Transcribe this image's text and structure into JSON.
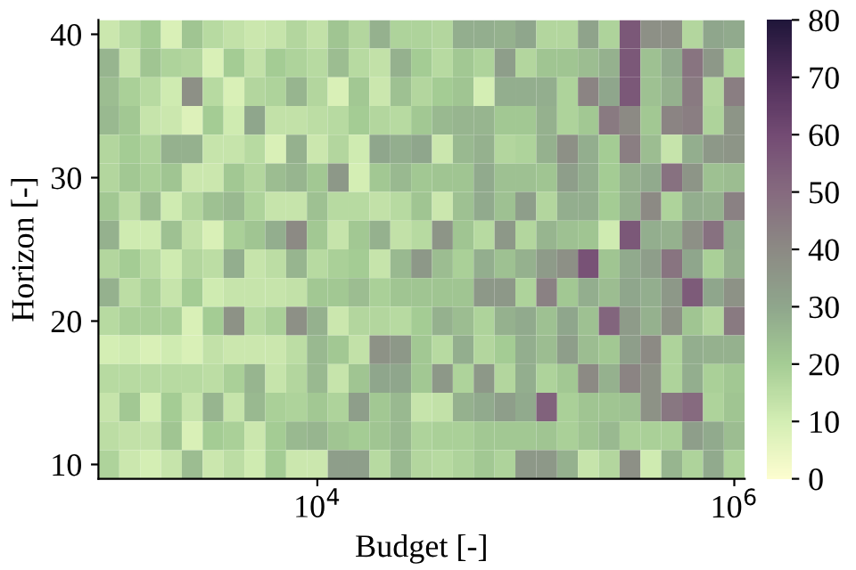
{
  "chart_data": {
    "type": "heatmap",
    "xlabel": "Budget [-]",
    "ylabel": "Horizon [-]",
    "clabel": null,
    "x": [
      1000,
      1259,
      1585,
      1995,
      2512,
      3162,
      3981,
      5012,
      6310,
      7943,
      10000,
      12589,
      15849,
      19953,
      25119,
      31623,
      39811,
      50119,
      63096,
      79433,
      100000,
      125893,
      158489,
      199526,
      251189,
      316228,
      398107,
      501187,
      630957,
      794328,
      1000000
    ],
    "y": [
      40,
      38,
      36,
      34,
      32,
      30,
      28,
      26,
      24,
      22,
      20,
      18,
      16,
      14,
      12,
      10
    ],
    "cells": [
      [
        12,
        16,
        20,
        9,
        22,
        16,
        14,
        12,
        13,
        17,
        14,
        22,
        17,
        27,
        18,
        18,
        17,
        28,
        28,
        27,
        30,
        17,
        17,
        31,
        18,
        56,
        38,
        38,
        17,
        30,
        29
      ],
      [
        26,
        13,
        22,
        18,
        17,
        9,
        20,
        14,
        20,
        18,
        16,
        24,
        16,
        14,
        27,
        20,
        16,
        21,
        18,
        33,
        17,
        22,
        22,
        24,
        27,
        56,
        23,
        29,
        47,
        35,
        18
      ],
      [
        24,
        19,
        16,
        11,
        38,
        16,
        9,
        17,
        18,
        26,
        17,
        9,
        21,
        12,
        23,
        17,
        20,
        22,
        10,
        28,
        28,
        28,
        18,
        42,
        30,
        56,
        23,
        27,
        45,
        17,
        44
      ],
      [
        25,
        21,
        13,
        12,
        8,
        20,
        11,
        30,
        14,
        14,
        15,
        16,
        20,
        17,
        16,
        21,
        25,
        26,
        26,
        21,
        21,
        27,
        18,
        21,
        45,
        40,
        21,
        42,
        44,
        18,
        36
      ],
      [
        17,
        20,
        18,
        27,
        27,
        13,
        13,
        16,
        9,
        27,
        12,
        17,
        11,
        30,
        28,
        30,
        12,
        25,
        27,
        17,
        18,
        27,
        38,
        28,
        20,
        44,
        24,
        13,
        28,
        35,
        36
      ],
      [
        17,
        21,
        19,
        22,
        12,
        12,
        21,
        17,
        24,
        26,
        21,
        35,
        10,
        21,
        25,
        21,
        22,
        22,
        29,
        23,
        23,
        22,
        33,
        28,
        20,
        27,
        29,
        48,
        36,
        23,
        24
      ],
      [
        21,
        15,
        24,
        11,
        17,
        23,
        25,
        18,
        13,
        13,
        23,
        16,
        16,
        14,
        16,
        22,
        12,
        23,
        29,
        23,
        33,
        17,
        28,
        28,
        20,
        27,
        40,
        18,
        28,
        27,
        43
      ],
      [
        27,
        11,
        11,
        23,
        14,
        9,
        19,
        22,
        28,
        40,
        21,
        13,
        21,
        27,
        14,
        16,
        36,
        22,
        16,
        35,
        17,
        26,
        23,
        22,
        11,
        56,
        28,
        27,
        38,
        48,
        28
      ],
      [
        17,
        20,
        16,
        11,
        17,
        15,
        28,
        13,
        15,
        26,
        16,
        19,
        20,
        13,
        25,
        35,
        24,
        19,
        28,
        23,
        27,
        34,
        38,
        58,
        22,
        29,
        33,
        47,
        30,
        19,
        27
      ],
      [
        27,
        15,
        19,
        13,
        20,
        11,
        13,
        13,
        13,
        14,
        21,
        21,
        24,
        19,
        22,
        22,
        22,
        22,
        35,
        35,
        18,
        43,
        21,
        28,
        24,
        30,
        28,
        35,
        55,
        30,
        37
      ],
      [
        16,
        19,
        19,
        19,
        9,
        20,
        37,
        16,
        19,
        38,
        27,
        12,
        17,
        17,
        16,
        20,
        27,
        24,
        18,
        27,
        29,
        23,
        30,
        23,
        52,
        34,
        27,
        37,
        22,
        17,
        45
      ],
      [
        10,
        11,
        9,
        11,
        9,
        14,
        12,
        12,
        12,
        15,
        25,
        21,
        14,
        37,
        35,
        21,
        16,
        28,
        17,
        20,
        28,
        24,
        33,
        24,
        21,
        33,
        40,
        18,
        28,
        27,
        27
      ],
      [
        16,
        16,
        16,
        16,
        16,
        15,
        19,
        26,
        13,
        17,
        25,
        13,
        22,
        30,
        30,
        21,
        35,
        18,
        35,
        17,
        28,
        18,
        21,
        40,
        27,
        42,
        37,
        18,
        28,
        19,
        21
      ],
      [
        13,
        21,
        10,
        20,
        13,
        26,
        13,
        25,
        19,
        18,
        21,
        18,
        33,
        21,
        25,
        13,
        14,
        27,
        29,
        33,
        29,
        53,
        19,
        22,
        22,
        23,
        37,
        46,
        50,
        18,
        22
      ],
      [
        15,
        14,
        14,
        22,
        9,
        20,
        19,
        12,
        20,
        25,
        26,
        22,
        20,
        22,
        25,
        18,
        19,
        19,
        21,
        21,
        21,
        22,
        19,
        22,
        25,
        19,
        19,
        19,
        33,
        29,
        24
      ],
      [
        18,
        12,
        10,
        13,
        24,
        12,
        15,
        11,
        20,
        12,
        12,
        33,
        33,
        16,
        25,
        17,
        16,
        18,
        21,
        18,
        35,
        35,
        27,
        13,
        17,
        38,
        11,
        26,
        18,
        29,
        18
      ]
    ],
    "colors": [
      "#fdfdd0",
      "#d4eeb4",
      "#a4cc94",
      "#8fa68c",
      "#8c8a84",
      "#866b7f",
      "#744c74",
      "#4f2e5a",
      "#20163a"
    ],
    "log": "x",
    "xlim": [
      891,
      1122018
    ],
    "ylim": [
      9,
      41
    ],
    "xticks": [
      {
        "value": 10000,
        "label": "10$^{4}$"
      },
      {
        "value": 1000000,
        "label": "10$^{6}$"
      }
    ],
    "yticks": [
      10,
      20,
      30,
      40
    ],
    "clim": [
      0,
      80
    ],
    "cticks": [
      0,
      10,
      20,
      30,
      40,
      50,
      60,
      70,
      80
    ],
    "grid": false
  }
}
